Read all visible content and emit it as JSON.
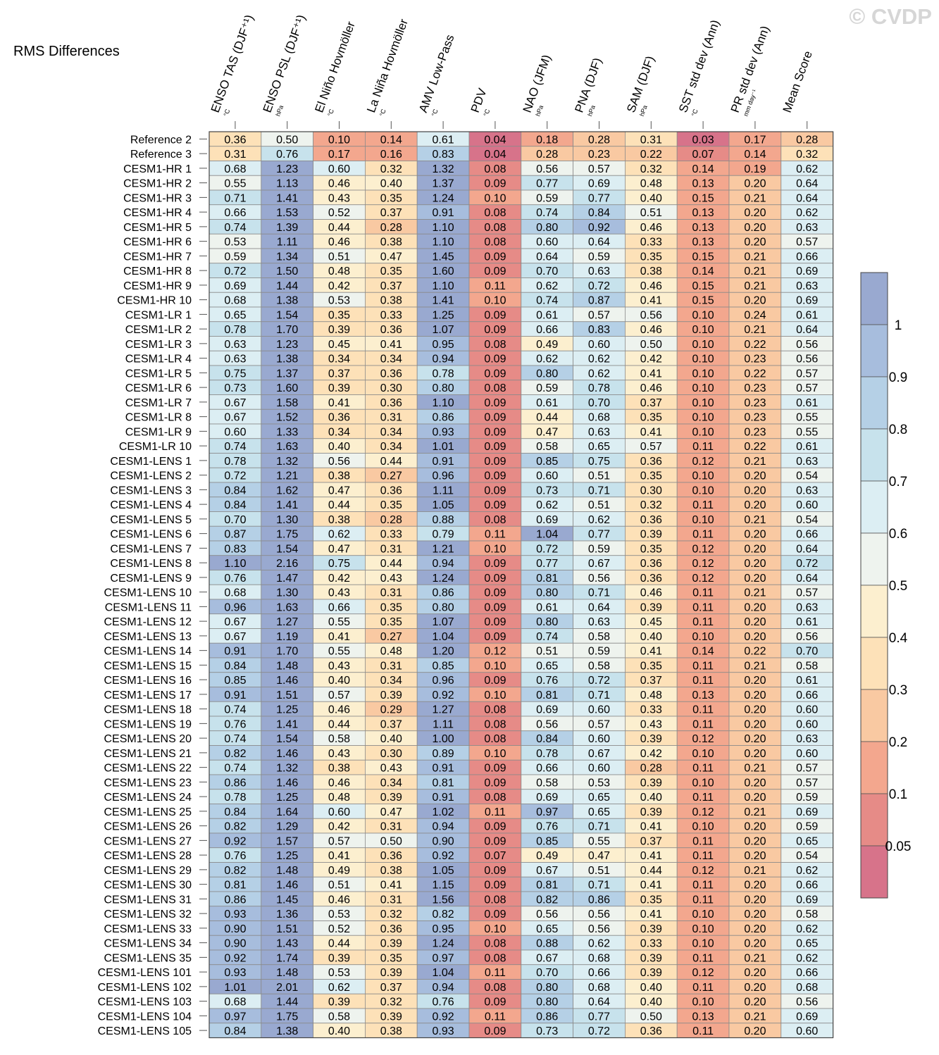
{
  "watermark": "© CVDP",
  "chart_data": {
    "type": "heatmap",
    "title": "RMS Differences",
    "columns": [
      {
        "label": "ENSO TAS (DJF⁺¹)",
        "unit": "°C"
      },
      {
        "label": "ENSO PSL (DJF⁺¹)",
        "unit": "hPa"
      },
      {
        "label": "El Niño Hovmöller",
        "unit": "°C"
      },
      {
        "label": "La Niña Hovmöller",
        "unit": "°C"
      },
      {
        "label": "AMV Low-Pass",
        "unit": "°C"
      },
      {
        "label": "PDV",
        "unit": "°C"
      },
      {
        "label": "NAO (JFM)",
        "unit": "hPa"
      },
      {
        "label": "PNA (DJF)",
        "unit": "hPa"
      },
      {
        "label": "SAM (DJF)",
        "unit": "hPa"
      },
      {
        "label": "SST std dev (Ann)",
        "unit": "°C"
      },
      {
        "label": "PR std dev (Ann)",
        "unit": "mm day⁻¹"
      },
      {
        "label": "Mean Score",
        "unit": ""
      }
    ],
    "rows": [
      "Reference 2",
      "Reference 3",
      "CESM1-HR 1",
      "CESM1-HR 2",
      "CESM1-HR 3",
      "CESM1-HR 4",
      "CESM1-HR 5",
      "CESM1-HR 6",
      "CESM1-HR 7",
      "CESM1-HR 8",
      "CESM1-HR 9",
      "CESM1-HR 10",
      "CESM1-LR 1",
      "CESM1-LR 2",
      "CESM1-LR 3",
      "CESM1-LR 4",
      "CESM1-LR 5",
      "CESM1-LR 6",
      "CESM1-LR 7",
      "CESM1-LR 8",
      "CESM1-LR 9",
      "CESM1-LR 10",
      "CESM1-LENS 1",
      "CESM1-LENS 2",
      "CESM1-LENS 3",
      "CESM1-LENS 4",
      "CESM1-LENS 5",
      "CESM1-LENS 6",
      "CESM1-LENS 7",
      "CESM1-LENS 8",
      "CESM1-LENS 9",
      "CESM1-LENS 10",
      "CESM1-LENS 11",
      "CESM1-LENS 12",
      "CESM1-LENS 13",
      "CESM1-LENS 14",
      "CESM1-LENS 15",
      "CESM1-LENS 16",
      "CESM1-LENS 17",
      "CESM1-LENS 18",
      "CESM1-LENS 19",
      "CESM1-LENS 20",
      "CESM1-LENS 21",
      "CESM1-LENS 22",
      "CESM1-LENS 23",
      "CESM1-LENS 24",
      "CESM1-LENS 25",
      "CESM1-LENS 26",
      "CESM1-LENS 27",
      "CESM1-LENS 28",
      "CESM1-LENS 29",
      "CESM1-LENS 30",
      "CESM1-LENS 31",
      "CESM1-LENS 32",
      "CESM1-LENS 33",
      "CESM1-LENS 34",
      "CESM1-LENS 35",
      "CESM1-LENS 101",
      "CESM1-LENS 102",
      "CESM1-LENS 103",
      "CESM1-LENS 104",
      "CESM1-LENS 105"
    ],
    "values": [
      [
        0.36,
        0.5,
        0.1,
        0.14,
        0.61,
        0.04,
        0.18,
        0.28,
        0.31,
        0.03,
        0.17,
        0.28
      ],
      [
        0.31,
        0.76,
        0.17,
        0.16,
        0.83,
        0.04,
        0.28,
        0.23,
        0.22,
        0.07,
        0.14,
        0.32
      ],
      [
        0.68,
        1.23,
        0.6,
        0.32,
        1.32,
        0.08,
        0.56,
        0.57,
        0.32,
        0.14,
        0.19,
        0.62
      ],
      [
        0.55,
        1.13,
        0.46,
        0.4,
        1.37,
        0.09,
        0.77,
        0.69,
        0.48,
        0.13,
        0.2,
        0.64
      ],
      [
        0.71,
        1.41,
        0.43,
        0.35,
        1.24,
        0.1,
        0.59,
        0.77,
        0.4,
        0.15,
        0.21,
        0.64
      ],
      [
        0.66,
        1.53,
        0.52,
        0.37,
        0.91,
        0.08,
        0.74,
        0.84,
        0.51,
        0.13,
        0.2,
        0.62
      ],
      [
        0.74,
        1.39,
        0.44,
        0.28,
        1.1,
        0.08,
        0.8,
        0.92,
        0.46,
        0.13,
        0.2,
        0.63
      ],
      [
        0.53,
        1.11,
        0.46,
        0.38,
        1.1,
        0.08,
        0.6,
        0.64,
        0.33,
        0.13,
        0.2,
        0.57
      ],
      [
        0.59,
        1.34,
        0.51,
        0.47,
        1.45,
        0.09,
        0.64,
        0.59,
        0.35,
        0.15,
        0.21,
        0.66
      ],
      [
        0.72,
        1.5,
        0.48,
        0.35,
        1.6,
        0.09,
        0.7,
        0.63,
        0.38,
        0.14,
        0.21,
        0.69
      ],
      [
        0.69,
        1.44,
        0.42,
        0.37,
        1.1,
        0.11,
        0.62,
        0.72,
        0.46,
        0.15,
        0.21,
        0.63
      ],
      [
        0.68,
        1.38,
        0.53,
        0.38,
        1.41,
        0.1,
        0.74,
        0.87,
        0.41,
        0.15,
        0.2,
        0.69
      ],
      [
        0.65,
        1.54,
        0.35,
        0.33,
        1.25,
        0.09,
        0.61,
        0.57,
        0.56,
        0.1,
        0.24,
        0.61
      ],
      [
        0.78,
        1.7,
        0.39,
        0.36,
        1.07,
        0.09,
        0.66,
        0.83,
        0.46,
        0.1,
        0.21,
        0.64
      ],
      [
        0.63,
        1.23,
        0.45,
        0.41,
        0.95,
        0.08,
        0.49,
        0.6,
        0.5,
        0.1,
        0.22,
        0.56
      ],
      [
        0.63,
        1.38,
        0.34,
        0.34,
        0.94,
        0.09,
        0.62,
        0.62,
        0.42,
        0.1,
        0.23,
        0.56
      ],
      [
        0.75,
        1.37,
        0.37,
        0.36,
        0.78,
        0.09,
        0.8,
        0.62,
        0.41,
        0.1,
        0.22,
        0.57
      ],
      [
        0.73,
        1.6,
        0.39,
        0.3,
        0.8,
        0.08,
        0.59,
        0.78,
        0.46,
        0.1,
        0.23,
        0.57
      ],
      [
        0.67,
        1.58,
        0.41,
        0.36,
        1.1,
        0.09,
        0.61,
        0.7,
        0.37,
        0.1,
        0.23,
        0.61
      ],
      [
        0.67,
        1.52,
        0.36,
        0.31,
        0.86,
        0.09,
        0.44,
        0.68,
        0.35,
        0.1,
        0.23,
        0.55
      ],
      [
        0.6,
        1.33,
        0.34,
        0.34,
        0.93,
        0.09,
        0.47,
        0.63,
        0.41,
        0.1,
        0.23,
        0.55
      ],
      [
        0.74,
        1.63,
        0.4,
        0.34,
        1.01,
        0.09,
        0.58,
        0.65,
        0.57,
        0.11,
        0.22,
        0.61
      ],
      [
        0.78,
        1.32,
        0.56,
        0.44,
        0.91,
        0.09,
        0.85,
        0.75,
        0.36,
        0.12,
        0.21,
        0.63
      ],
      [
        0.72,
        1.21,
        0.38,
        0.27,
        0.96,
        0.09,
        0.6,
        0.51,
        0.35,
        0.1,
        0.2,
        0.54
      ],
      [
        0.84,
        1.62,
        0.47,
        0.36,
        1.11,
        0.09,
        0.73,
        0.71,
        0.3,
        0.1,
        0.2,
        0.63
      ],
      [
        0.84,
        1.41,
        0.44,
        0.35,
        1.05,
        0.09,
        0.62,
        0.51,
        0.32,
        0.11,
        0.2,
        0.6
      ],
      [
        0.7,
        1.3,
        0.38,
        0.28,
        0.88,
        0.08,
        0.69,
        0.62,
        0.36,
        0.1,
        0.21,
        0.54
      ],
      [
        0.87,
        1.75,
        0.62,
        0.33,
        0.79,
        0.11,
        1.04,
        0.77,
        0.39,
        0.11,
        0.2,
        0.66
      ],
      [
        0.83,
        1.54,
        0.47,
        0.31,
        1.21,
        0.1,
        0.72,
        0.59,
        0.35,
        0.12,
        0.2,
        0.64
      ],
      [
        1.1,
        2.16,
        0.75,
        0.44,
        0.94,
        0.09,
        0.77,
        0.67,
        0.36,
        0.12,
        0.2,
        0.72
      ],
      [
        0.76,
        1.47,
        0.42,
        0.43,
        1.24,
        0.09,
        0.81,
        0.56,
        0.36,
        0.12,
        0.2,
        0.64
      ],
      [
        0.68,
        1.3,
        0.43,
        0.31,
        0.86,
        0.09,
        0.8,
        0.71,
        0.46,
        0.11,
        0.21,
        0.57
      ],
      [
        0.96,
        1.63,
        0.66,
        0.35,
        0.8,
        0.09,
        0.61,
        0.64,
        0.39,
        0.11,
        0.2,
        0.63
      ],
      [
        0.67,
        1.27,
        0.55,
        0.35,
        1.07,
        0.09,
        0.8,
        0.63,
        0.45,
        0.11,
        0.2,
        0.61
      ],
      [
        0.67,
        1.19,
        0.41,
        0.27,
        1.04,
        0.09,
        0.74,
        0.58,
        0.4,
        0.1,
        0.2,
        0.56
      ],
      [
        0.91,
        1.7,
        0.55,
        0.48,
        1.2,
        0.12,
        0.51,
        0.59,
        0.41,
        0.14,
        0.22,
        0.7
      ],
      [
        0.84,
        1.48,
        0.43,
        0.31,
        0.85,
        0.1,
        0.65,
        0.58,
        0.35,
        0.11,
        0.21,
        0.58
      ],
      [
        0.85,
        1.46,
        0.4,
        0.34,
        0.96,
        0.09,
        0.76,
        0.72,
        0.37,
        0.11,
        0.2,
        0.61
      ],
      [
        0.91,
        1.51,
        0.57,
        0.39,
        0.92,
        0.1,
        0.81,
        0.71,
        0.48,
        0.13,
        0.2,
        0.66
      ],
      [
        0.74,
        1.25,
        0.46,
        0.29,
        1.27,
        0.08,
        0.69,
        0.6,
        0.33,
        0.11,
        0.2,
        0.6
      ],
      [
        0.76,
        1.41,
        0.44,
        0.37,
        1.11,
        0.08,
        0.56,
        0.57,
        0.43,
        0.11,
        0.2,
        0.6
      ],
      [
        0.74,
        1.54,
        0.58,
        0.4,
        1.0,
        0.08,
        0.84,
        0.6,
        0.39,
        0.12,
        0.2,
        0.63
      ],
      [
        0.82,
        1.46,
        0.43,
        0.3,
        0.89,
        0.1,
        0.78,
        0.67,
        0.42,
        0.1,
        0.2,
        0.6
      ],
      [
        0.74,
        1.32,
        0.38,
        0.43,
        0.91,
        0.09,
        0.66,
        0.6,
        0.28,
        0.11,
        0.21,
        0.57
      ],
      [
        0.86,
        1.46,
        0.46,
        0.34,
        0.81,
        0.09,
        0.58,
        0.53,
        0.39,
        0.1,
        0.2,
        0.57
      ],
      [
        0.78,
        1.25,
        0.48,
        0.39,
        0.91,
        0.08,
        0.69,
        0.65,
        0.4,
        0.11,
        0.2,
        0.59
      ],
      [
        0.84,
        1.64,
        0.6,
        0.47,
        1.02,
        0.11,
        0.97,
        0.65,
        0.39,
        0.12,
        0.21,
        0.69
      ],
      [
        0.82,
        1.29,
        0.42,
        0.31,
        0.94,
        0.09,
        0.76,
        0.71,
        0.41,
        0.1,
        0.2,
        0.59
      ],
      [
        0.92,
        1.57,
        0.57,
        0.5,
        0.9,
        0.09,
        0.85,
        0.55,
        0.37,
        0.11,
        0.2,
        0.65
      ],
      [
        0.76,
        1.25,
        0.41,
        0.36,
        0.92,
        0.07,
        0.49,
        0.47,
        0.41,
        0.11,
        0.2,
        0.54
      ],
      [
        0.82,
        1.48,
        0.49,
        0.38,
        1.05,
        0.09,
        0.67,
        0.51,
        0.44,
        0.12,
        0.21,
        0.62
      ],
      [
        0.81,
        1.46,
        0.51,
        0.41,
        1.15,
        0.09,
        0.81,
        0.71,
        0.41,
        0.11,
        0.2,
        0.66
      ],
      [
        0.86,
        1.45,
        0.46,
        0.31,
        1.56,
        0.08,
        0.82,
        0.86,
        0.35,
        0.11,
        0.2,
        0.69
      ],
      [
        0.93,
        1.36,
        0.53,
        0.32,
        0.82,
        0.09,
        0.56,
        0.56,
        0.41,
        0.1,
        0.2,
        0.58
      ],
      [
        0.9,
        1.51,
        0.52,
        0.36,
        0.95,
        0.1,
        0.65,
        0.56,
        0.39,
        0.1,
        0.2,
        0.62
      ],
      [
        0.9,
        1.43,
        0.44,
        0.39,
        1.24,
        0.08,
        0.88,
        0.62,
        0.33,
        0.1,
        0.2,
        0.65
      ],
      [
        0.92,
        1.74,
        0.39,
        0.35,
        0.97,
        0.08,
        0.67,
        0.68,
        0.39,
        0.11,
        0.21,
        0.62
      ],
      [
        0.93,
        1.48,
        0.53,
        0.39,
        1.04,
        0.11,
        0.7,
        0.66,
        0.39,
        0.12,
        0.2,
        0.66
      ],
      [
        1.01,
        2.01,
        0.62,
        0.37,
        0.94,
        0.08,
        0.8,
        0.68,
        0.4,
        0.11,
        0.2,
        0.68
      ],
      [
        0.68,
        1.44,
        0.39,
        0.32,
        0.76,
        0.09,
        0.8,
        0.64,
        0.4,
        0.1,
        0.2,
        0.56
      ],
      [
        0.97,
        1.75,
        0.58,
        0.39,
        0.92,
        0.11,
        0.86,
        0.77,
        0.5,
        0.13,
        0.21,
        0.69
      ],
      [
        0.84,
        1.38,
        0.4,
        0.38,
        0.93,
        0.09,
        0.73,
        0.72,
        0.36,
        0.11,
        0.2,
        0.6
      ]
    ],
    "colorbar": {
      "labels": [
        "1",
        "0.9",
        "0.8",
        "0.7",
        "0.6",
        "0.5",
        "0.4",
        "0.3",
        "0.2",
        "0.1",
        "0.05"
      ],
      "colors": [
        "#99a9d0",
        "#a7bddd",
        "#b5d0e6",
        "#c7e2ec",
        "#dceef3",
        "#eef3ee",
        "#fcefcf",
        "#fde1b8",
        "#f9c9a2",
        "#f3a78e",
        "#e68b87",
        "#d7738a"
      ]
    }
  }
}
